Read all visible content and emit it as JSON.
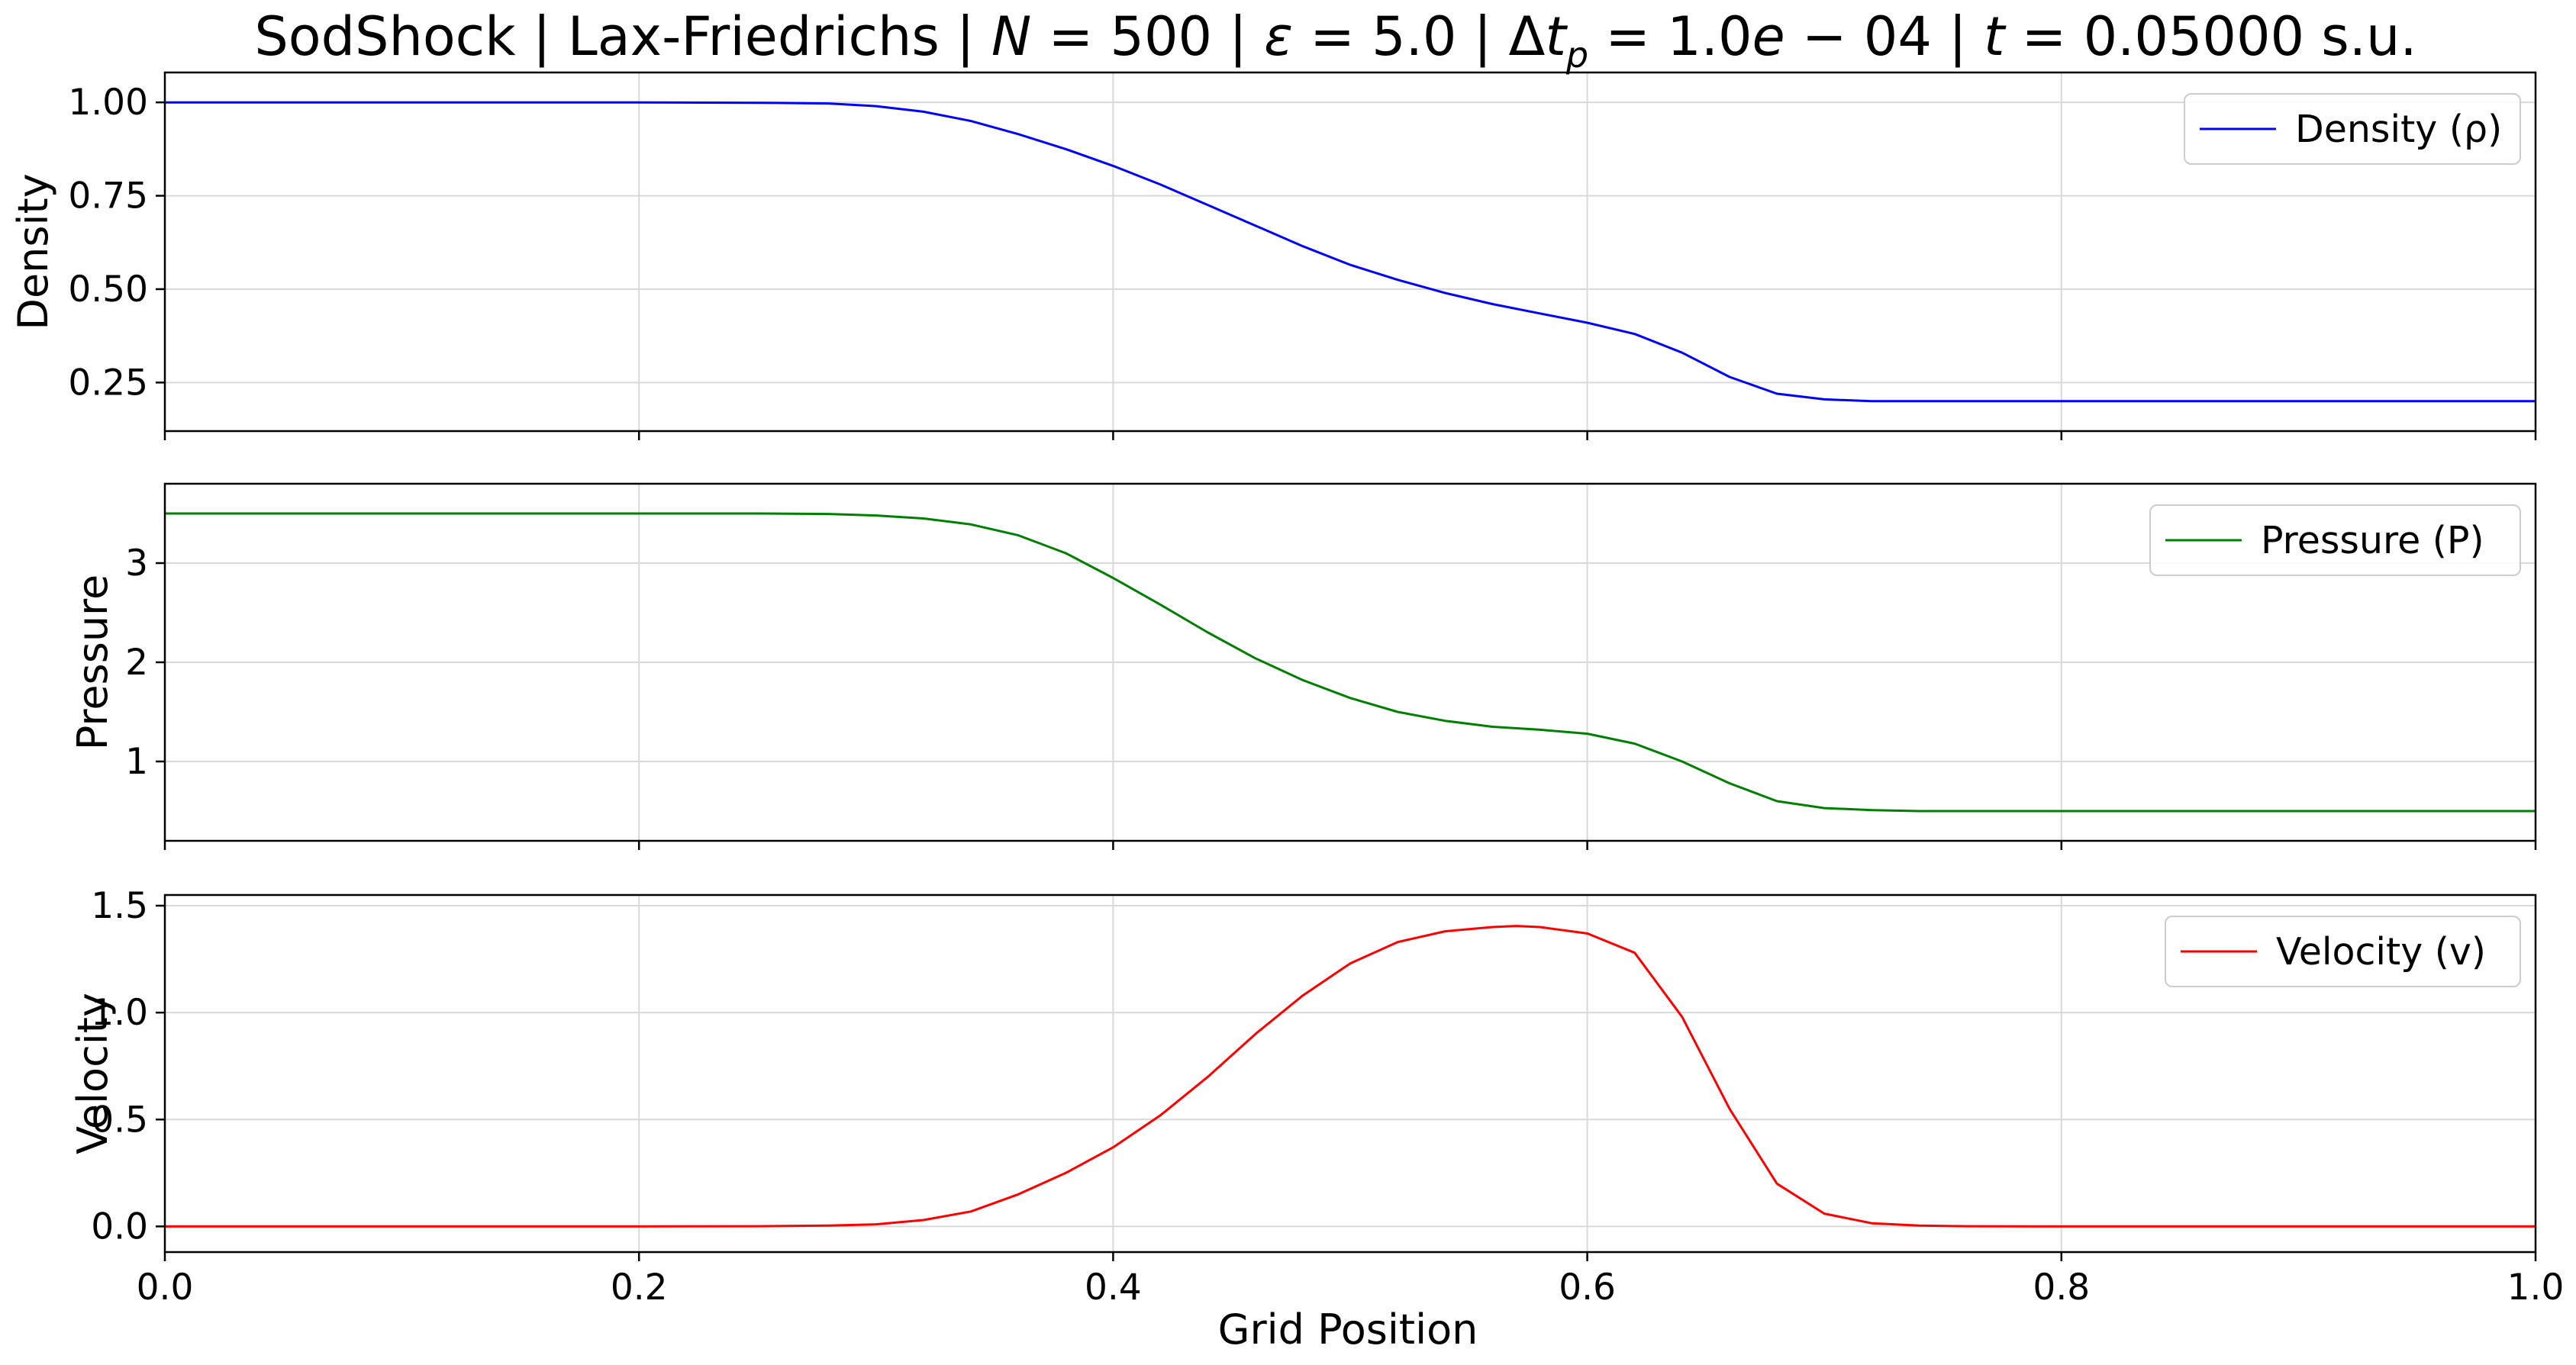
{
  "chart_data": {
    "type": "line",
    "title": "SodShock | Lax-Friedrichs | N = 500 | ε = 5.0 | Δt_p = 1.0e−04 | t = 0.05000 s.u.",
    "title_parts": {
      "run": "SodShock | Lax-Friedrichs | ",
      "n_sym": "N",
      "n_val": " = 500 | ",
      "eps_sym": "ε",
      "eps_val": " = 5.0 | Δ",
      "dt_sym": "t",
      "dt_sub": "p",
      "dt_val": " = 1.0",
      "dt_e": "e",
      "dt_exp": " − 04 | ",
      "t_sym": "t",
      "t_val": " = 0.05000 s.u."
    },
    "xlabel": "Grid Position",
    "xlim": [
      0,
      1
    ],
    "shared_x": true,
    "grid": true,
    "xticks": [
      {
        "value": 0,
        "label": "0.0"
      },
      {
        "value": 0.2,
        "label": "0.2"
      },
      {
        "value": 0.4,
        "label": "0.4"
      },
      {
        "value": 0.6,
        "label": "0.6"
      },
      {
        "value": 0.8,
        "label": "0.8"
      },
      {
        "value": 1,
        "label": "1.0"
      }
    ],
    "panels": [
      {
        "ylabel": "Density",
        "ylim": [
          0.12,
          1.08
        ],
        "yticks": [
          {
            "value": 0.25,
            "label": "0.25"
          },
          {
            "value": 0.5,
            "label": "0.50"
          },
          {
            "value": 0.75,
            "label": "0.75"
          },
          {
            "value": 1.0,
            "label": "1.00"
          }
        ],
        "legend_position": "upper right",
        "series": [
          {
            "name": "Density (ρ)",
            "color": "#0000ff",
            "x": [
              0.0,
              0.1,
              0.2,
              0.25,
              0.28,
              0.3,
              0.32,
              0.34,
              0.36,
              0.38,
              0.4,
              0.42,
              0.44,
              0.46,
              0.48,
              0.5,
              0.52,
              0.54,
              0.56,
              0.58,
              0.6,
              0.62,
              0.64,
              0.66,
              0.68,
              0.7,
              0.72,
              0.74,
              0.76,
              0.8,
              0.9,
              1.0
            ],
            "y": [
              1.0,
              1.0,
              1.0,
              0.999,
              0.997,
              0.99,
              0.975,
              0.95,
              0.915,
              0.875,
              0.83,
              0.78,
              0.725,
              0.67,
              0.615,
              0.565,
              0.525,
              0.49,
              0.46,
              0.435,
              0.41,
              0.38,
              0.33,
              0.265,
              0.22,
              0.205,
              0.2,
              0.2,
              0.2,
              0.2,
              0.2,
              0.2
            ]
          }
        ]
      },
      {
        "ylabel": "Pressure",
        "ylim": [
          0.2,
          3.8
        ],
        "yticks": [
          {
            "value": 1,
            "label": "1"
          },
          {
            "value": 2,
            "label": "2"
          },
          {
            "value": 3,
            "label": "3"
          }
        ],
        "legend_position": "upper right",
        "series": [
          {
            "name": "Pressure (P)",
            "color": "#008000",
            "x": [
              0.0,
              0.1,
              0.2,
              0.25,
              0.28,
              0.3,
              0.32,
              0.34,
              0.36,
              0.38,
              0.4,
              0.42,
              0.44,
              0.46,
              0.48,
              0.5,
              0.52,
              0.54,
              0.56,
              0.58,
              0.6,
              0.62,
              0.64,
              0.66,
              0.68,
              0.7,
              0.72,
              0.74,
              0.76,
              0.8,
              0.9,
              1.0
            ],
            "y": [
              3.5,
              3.5,
              3.5,
              3.5,
              3.495,
              3.48,
              3.45,
              3.39,
              3.28,
              3.1,
              2.85,
              2.58,
              2.3,
              2.04,
              1.82,
              1.64,
              1.5,
              1.41,
              1.35,
              1.32,
              1.28,
              1.18,
              1.0,
              0.78,
              0.6,
              0.53,
              0.51,
              0.5,
              0.5,
              0.5,
              0.5,
              0.5
            ]
          }
        ]
      },
      {
        "ylabel": "Velocity",
        "ylim": [
          -0.12,
          1.55
        ],
        "yticks": [
          {
            "value": 0.0,
            "label": "0.0"
          },
          {
            "value": 0.5,
            "label": "0.5"
          },
          {
            "value": 1.0,
            "label": "1.0"
          },
          {
            "value": 1.5,
            "label": "1.5"
          }
        ],
        "legend_position": "upper right",
        "series": [
          {
            "name": "Velocity (v)",
            "color": "#ff0000",
            "x": [
              0.0,
              0.1,
              0.2,
              0.25,
              0.28,
              0.3,
              0.32,
              0.34,
              0.36,
              0.38,
              0.4,
              0.42,
              0.44,
              0.46,
              0.48,
              0.5,
              0.52,
              0.54,
              0.56,
              0.57,
              0.58,
              0.6,
              0.62,
              0.64,
              0.66,
              0.68,
              0.7,
              0.72,
              0.74,
              0.76,
              0.8,
              0.9,
              1.0
            ],
            "y": [
              0.0,
              0.0,
              0.0,
              0.001,
              0.004,
              0.01,
              0.03,
              0.07,
              0.15,
              0.25,
              0.37,
              0.52,
              0.7,
              0.9,
              1.08,
              1.23,
              1.33,
              1.38,
              1.4,
              1.405,
              1.4,
              1.37,
              1.28,
              0.98,
              0.55,
              0.2,
              0.06,
              0.015,
              0.004,
              0.001,
              0.0,
              0.0,
              0.0
            ]
          }
        ]
      }
    ]
  }
}
